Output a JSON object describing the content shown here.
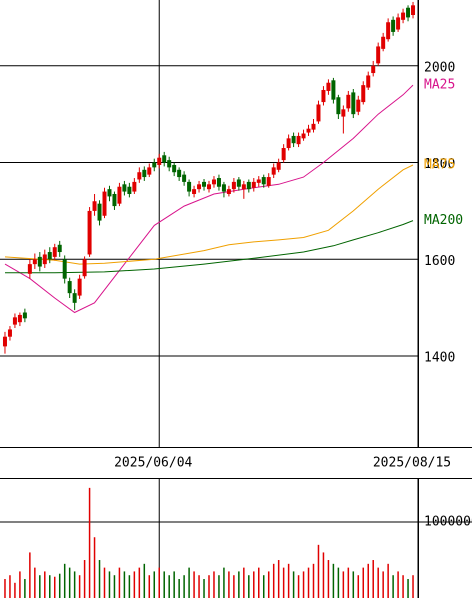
{
  "chart_data": {
    "type": "candlestick",
    "xlim": [
      -1,
      83
    ],
    "xticks": [
      {
        "value": 31,
        "label": "2025/06/04"
      },
      {
        "value": 83,
        "label": "2025/08/15"
      }
    ],
    "ylim": [
      1212,
      2136
    ],
    "yticks": [
      1400,
      1600,
      1800,
      2000
    ],
    "up_color": "#e00000",
    "down_color": "#006400",
    "open": [
      1420,
      1440,
      1465,
      1470,
      1490,
      1570,
      1590,
      1605,
      1590,
      1615,
      1605,
      1630,
      1600,
      1555,
      1530,
      1525,
      1565,
      1610,
      1700,
      1715,
      1690,
      1745,
      1735,
      1715,
      1755,
      1750,
      1740,
      1765,
      1785,
      1775,
      1800,
      1795,
      1815,
      1805,
      1795,
      1785,
      1775,
      1760,
      1735,
      1745,
      1760,
      1745,
      1755,
      1768,
      1755,
      1735,
      1745,
      1765,
      1745,
      1760,
      1748,
      1758,
      1770,
      1752,
      1775,
      1785,
      1805,
      1830,
      1855,
      1838,
      1850,
      1862,
      1868,
      1885,
      1925,
      1948,
      1970,
      1935,
      1895,
      1912,
      1945,
      1905,
      1925,
      1955,
      1985,
      2005,
      2035,
      2055,
      2095,
      2075,
      2095,
      2120,
      2105
    ],
    "high": [
      1450,
      1462,
      1488,
      1490,
      1498,
      1600,
      1612,
      1615,
      1620,
      1625,
      1632,
      1638,
      1608,
      1562,
      1538,
      1568,
      1606,
      1708,
      1735,
      1722,
      1748,
      1752,
      1740,
      1758,
      1762,
      1758,
      1768,
      1790,
      1792,
      1798,
      1808,
      1818,
      1822,
      1812,
      1800,
      1790,
      1782,
      1765,
      1752,
      1762,
      1766,
      1762,
      1772,
      1775,
      1760,
      1752,
      1768,
      1770,
      1762,
      1765,
      1768,
      1772,
      1775,
      1778,
      1798,
      1808,
      1838,
      1858,
      1862,
      1862,
      1868,
      1878,
      1890,
      1928,
      1958,
      1972,
      1975,
      1940,
      1918,
      1948,
      1952,
      1938,
      1968,
      1988,
      2010,
      2048,
      2068,
      2098,
      2102,
      2108,
      2118,
      2125,
      2132
    ],
    "low": [
      1405,
      1432,
      1458,
      1462,
      1470,
      1560,
      1580,
      1575,
      1582,
      1592,
      1598,
      1605,
      1550,
      1520,
      1495,
      1518,
      1560,
      1605,
      1690,
      1670,
      1685,
      1720,
      1702,
      1710,
      1732,
      1728,
      1735,
      1758,
      1762,
      1770,
      1782,
      1788,
      1792,
      1782,
      1772,
      1762,
      1752,
      1730,
      1728,
      1738,
      1742,
      1738,
      1748,
      1742,
      1728,
      1730,
      1738,
      1742,
      1725,
      1738,
      1740,
      1750,
      1748,
      1748,
      1768,
      1780,
      1800,
      1825,
      1832,
      1832,
      1845,
      1855,
      1862,
      1880,
      1918,
      1940,
      1922,
      1890,
      1860,
      1905,
      1892,
      1898,
      1920,
      1950,
      1978,
      2000,
      2030,
      2050,
      2062,
      2070,
      2088,
      2092,
      2098
    ],
    "close": [
      1440,
      1455,
      1480,
      1485,
      1478,
      1590,
      1600,
      1585,
      1610,
      1600,
      1625,
      1615,
      1560,
      1530,
      1510,
      1560,
      1600,
      1700,
      1720,
      1680,
      1740,
      1730,
      1710,
      1750,
      1740,
      1735,
      1760,
      1780,
      1770,
      1790,
      1790,
      1810,
      1800,
      1790,
      1780,
      1770,
      1760,
      1740,
      1745,
      1755,
      1750,
      1755,
      1765,
      1750,
      1740,
      1745,
      1760,
      1750,
      1755,
      1745,
      1760,
      1765,
      1755,
      1770,
      1790,
      1800,
      1830,
      1850,
      1840,
      1855,
      1860,
      1870,
      1880,
      1920,
      1950,
      1965,
      1930,
      1900,
      1910,
      1940,
      1900,
      1930,
      1960,
      1980,
      2000,
      2040,
      2060,
      2090,
      2070,
      2100,
      2110,
      2100,
      2125
    ],
    "series": [
      {
        "name": "MA25",
        "color": "#d8148c",
        "x": [
          0,
          5,
          10,
          14,
          18,
          24,
          30,
          36,
          42,
          48,
          55,
          60,
          64,
          70,
          75,
          80,
          82
        ],
        "values": [
          1590,
          1560,
          1520,
          1490,
          1510,
          1590,
          1670,
          1710,
          1735,
          1745,
          1755,
          1770,
          1800,
          1850,
          1900,
          1940,
          1960
        ]
      },
      {
        "name": "MA75",
        "color": "#f0a000",
        "x": [
          0,
          10,
          15,
          20,
          30,
          40,
          45,
          50,
          55,
          60,
          65,
          70,
          75,
          80,
          82
        ],
        "values": [
          1605,
          1598,
          1590,
          1592,
          1600,
          1618,
          1630,
          1636,
          1640,
          1645,
          1660,
          1700,
          1745,
          1785,
          1795
        ]
      },
      {
        "name": "MA200",
        "color": "#006400",
        "x": [
          0,
          10,
          20,
          30,
          40,
          50,
          60,
          66,
          70,
          75,
          80,
          82
        ],
        "values": [
          1572,
          1572,
          1574,
          1580,
          1590,
          1602,
          1615,
          1628,
          1640,
          1655,
          1672,
          1680
        ]
      }
    ],
    "volume": [
      250000,
      300000,
      200000,
      350000,
      250000,
      600000,
      400000,
      300000,
      350000,
      300000,
      280000,
      320000,
      450000,
      400000,
      350000,
      300000,
      500000,
      1450000,
      800000,
      500000,
      400000,
      350000,
      300000,
      400000,
      350000,
      300000,
      350000,
      400000,
      450000,
      300000,
      350000,
      400000,
      350000,
      300000,
      350000,
      250000,
      300000,
      400000,
      350000,
      300000,
      250000,
      300000,
      350000,
      300000,
      400000,
      350000,
      300000,
      350000,
      400000,
      300000,
      350000,
      400000,
      300000,
      350000,
      450000,
      500000,
      400000,
      450000,
      350000,
      300000,
      350000,
      400000,
      450000,
      700000,
      600000,
      500000,
      450000,
      400000,
      350000,
      400000,
      350000,
      300000,
      400000,
      450000,
      500000,
      400000,
      350000,
      450000,
      300000,
      350000,
      300000,
      250000,
      300000
    ],
    "volume_ylim": [
      0,
      1580000
    ],
    "volume_yticks": [
      {
        "value": 1000000,
        "label": "1000000"
      }
    ]
  }
}
